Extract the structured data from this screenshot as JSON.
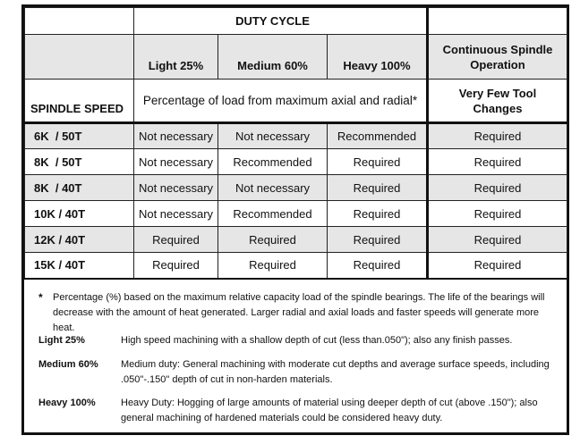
{
  "header": {
    "duty_cycle": "DUTY CYCLE",
    "continuous": "Continuous Spindle Operation",
    "light": "Light 25%",
    "medium": "Medium 60%",
    "heavy": "Heavy 100%",
    "spindle_speed": "SPINDLE SPEED",
    "percentage_note": "Percentage of load from maximum axial and radial*",
    "few_tool": "Very Few Tool Changes"
  },
  "rows": [
    {
      "speed": "6K  / 50T",
      "light": "Not necessary",
      "medium": "Not necessary",
      "heavy": "Recommended",
      "cont": "Required"
    },
    {
      "speed": "8K  / 50T",
      "light": "Not necessary",
      "medium": "Recommended",
      "heavy": "Required",
      "cont": "Required"
    },
    {
      "speed": "8K  / 40T",
      "light": "Not necessary",
      "medium": "Not necessary",
      "heavy": "Required",
      "cont": "Required"
    },
    {
      "speed": "10K / 40T",
      "light": "Not necessary",
      "medium": "Recommended",
      "heavy": "Required",
      "cont": "Required"
    },
    {
      "speed": "12K / 40T",
      "light": "Required",
      "medium": "Required",
      "heavy": "Required",
      "cont": "Required"
    },
    {
      "speed": "15K / 40T",
      "light": "Required",
      "medium": "Required",
      "heavy": "Required",
      "cont": "Required"
    }
  ],
  "notes": {
    "star_mark": "*",
    "star_text": "Percentage (%) based on the maximum relative capacity load of the spindle bearings. The life of the bearings will decrease with the amount of heat generated. Larger radial and axial loads and faster speeds will generate more heat.",
    "defs": [
      {
        "term": "Light 25%",
        "desc": "High speed machining with a shallow depth of cut (less than.050\"); also any finish passes."
      },
      {
        "term": "Medium 60%",
        "desc": "Medium duty: General machining with moderate cut depths and average surface speeds, including .050\"-.150\" depth of cut in non-harden materials."
      },
      {
        "term": "Heavy 100%",
        "desc": "Heavy Duty: Hogging of large amounts of material using deeper depth of cut (above .150\"); also general machining of hardened materials could be considered heavy duty."
      }
    ]
  }
}
